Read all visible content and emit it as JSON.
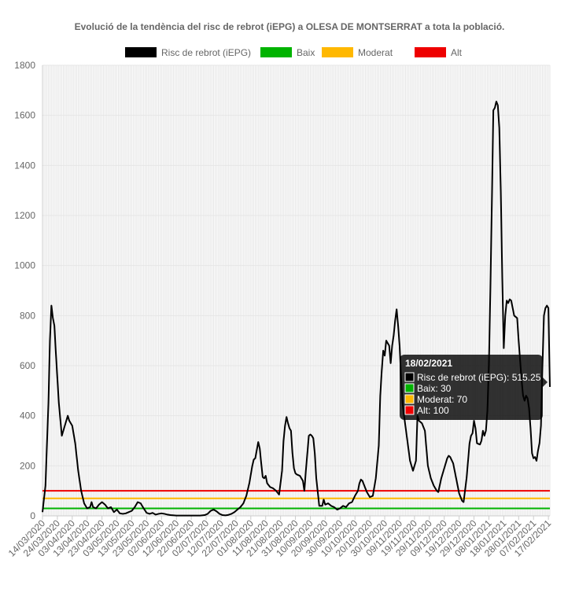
{
  "chart_data": {
    "type": "line",
    "title": "Evolució de la tendència del risc de rebrot (iEPG) a OLESA DE MONTSERRAT a tota la població.",
    "xlabel": "",
    "ylabel": "",
    "ylim": [
      0,
      1800
    ],
    "yticks": [
      0,
      200,
      400,
      600,
      800,
      1000,
      1200,
      1400,
      1600,
      1800
    ],
    "grid": true,
    "legend_position": "top",
    "x_tick_labels": [
      "14/03/2020",
      "24/03/2020",
      "03/04/2020",
      "13/04/2020",
      "23/04/2020",
      "03/05/2020",
      "13/05/2020",
      "23/05/2020",
      "02/06/2020",
      "12/06/2020",
      "22/06/2020",
      "02/07/2020",
      "12/07/2020",
      "22/07/2020",
      "01/08/2020",
      "11/08/2020",
      "21/08/2020",
      "31/08/2020",
      "10/09/2020",
      "20/09/2020",
      "30/09/2020",
      "10/10/2020",
      "20/10/2020",
      "30/10/2020",
      "09/11/2020",
      "19/11/2020",
      "29/11/2020",
      "09/12/2020",
      "19/12/2020",
      "29/12/2020",
      "08/01/2021",
      "18/01/2021",
      "28/01/2021",
      "07/02/2021",
      "17/02/2021"
    ],
    "x_start": "2020-03-14",
    "x_end": "2021-02-18",
    "series": [
      {
        "name": "Risc de rebrot (iEPG)",
        "color": "#000000",
        "points": [
          [
            "2020-03-14",
            15
          ],
          [
            "2020-03-16",
            120
          ],
          [
            "2020-03-18",
            450
          ],
          [
            "2020-03-19",
            700
          ],
          [
            "2020-03-20",
            840
          ],
          [
            "2020-03-21",
            790
          ],
          [
            "2020-03-22",
            760
          ],
          [
            "2020-03-23",
            650
          ],
          [
            "2020-03-25",
            450
          ],
          [
            "2020-03-27",
            320
          ],
          [
            "2020-03-28",
            340
          ],
          [
            "2020-03-29",
            360
          ],
          [
            "2020-03-31",
            400
          ],
          [
            "2020-04-01",
            380
          ],
          [
            "2020-04-03",
            360
          ],
          [
            "2020-04-05",
            290
          ],
          [
            "2020-04-07",
            180
          ],
          [
            "2020-04-09",
            100
          ],
          [
            "2020-04-11",
            50
          ],
          [
            "2020-04-13",
            30
          ],
          [
            "2020-04-15",
            35
          ],
          [
            "2020-04-16",
            55
          ],
          [
            "2020-04-17",
            35
          ],
          [
            "2020-04-19",
            30
          ],
          [
            "2020-04-21",
            45
          ],
          [
            "2020-04-23",
            55
          ],
          [
            "2020-04-25",
            45
          ],
          [
            "2020-04-27",
            30
          ],
          [
            "2020-04-29",
            35
          ],
          [
            "2020-05-01",
            15
          ],
          [
            "2020-05-03",
            25
          ],
          [
            "2020-05-05",
            10
          ],
          [
            "2020-05-07",
            8
          ],
          [
            "2020-05-09",
            10
          ],
          [
            "2020-05-11",
            15
          ],
          [
            "2020-05-13",
            20
          ],
          [
            "2020-05-15",
            35
          ],
          [
            "2020-05-17",
            55
          ],
          [
            "2020-05-19",
            50
          ],
          [
            "2020-05-21",
            30
          ],
          [
            "2020-05-23",
            12
          ],
          [
            "2020-05-25",
            8
          ],
          [
            "2020-05-27",
            12
          ],
          [
            "2020-05-29",
            5
          ],
          [
            "2020-05-31",
            8
          ],
          [
            "2020-06-02",
            10
          ],
          [
            "2020-06-04",
            8
          ],
          [
            "2020-06-06",
            5
          ],
          [
            "2020-06-08",
            3
          ],
          [
            "2020-06-12",
            1
          ],
          [
            "2020-06-20",
            1
          ],
          [
            "2020-06-28",
            1
          ],
          [
            "2020-07-01",
            3
          ],
          [
            "2020-07-03",
            8
          ],
          [
            "2020-07-05",
            20
          ],
          [
            "2020-07-07",
            25
          ],
          [
            "2020-07-09",
            18
          ],
          [
            "2020-07-11",
            8
          ],
          [
            "2020-07-13",
            3
          ],
          [
            "2020-07-15",
            2
          ],
          [
            "2020-07-17",
            4
          ],
          [
            "2020-07-19",
            8
          ],
          [
            "2020-07-21",
            15
          ],
          [
            "2020-07-23",
            25
          ],
          [
            "2020-07-25",
            35
          ],
          [
            "2020-07-27",
            50
          ],
          [
            "2020-07-29",
            80
          ],
          [
            "2020-07-31",
            130
          ],
          [
            "2020-08-02",
            200
          ],
          [
            "2020-08-03",
            225
          ],
          [
            "2020-08-04",
            230
          ],
          [
            "2020-08-06",
            295
          ],
          [
            "2020-08-07",
            270
          ],
          [
            "2020-08-08",
            210
          ],
          [
            "2020-08-09",
            155
          ],
          [
            "2020-08-10",
            150
          ],
          [
            "2020-08-11",
            160
          ],
          [
            "2020-08-12",
            130
          ],
          [
            "2020-08-14",
            115
          ],
          [
            "2020-08-16",
            110
          ],
          [
            "2020-08-18",
            100
          ],
          [
            "2020-08-20",
            85
          ],
          [
            "2020-08-22",
            180
          ],
          [
            "2020-08-23",
            300
          ],
          [
            "2020-08-24",
            360
          ],
          [
            "2020-08-25",
            395
          ],
          [
            "2020-08-26",
            370
          ],
          [
            "2020-08-27",
            350
          ],
          [
            "2020-08-28",
            340
          ],
          [
            "2020-08-29",
            250
          ],
          [
            "2020-08-30",
            190
          ],
          [
            "2020-08-31",
            170
          ],
          [
            "2020-09-01",
            165
          ],
          [
            "2020-09-03",
            160
          ],
          [
            "2020-09-05",
            140
          ],
          [
            "2020-09-06",
            100
          ],
          [
            "2020-09-07",
            180
          ],
          [
            "2020-09-08",
            250
          ],
          [
            "2020-09-09",
            320
          ],
          [
            "2020-09-10",
            325
          ],
          [
            "2020-09-11",
            320
          ],
          [
            "2020-09-12",
            310
          ],
          [
            "2020-09-13",
            250
          ],
          [
            "2020-09-14",
            150
          ],
          [
            "2020-09-16",
            40
          ],
          [
            "2020-09-18",
            40
          ],
          [
            "2020-09-19",
            65
          ],
          [
            "2020-09-20",
            45
          ],
          [
            "2020-09-22",
            50
          ],
          [
            "2020-09-24",
            40
          ],
          [
            "2020-09-26",
            35
          ],
          [
            "2020-09-28",
            25
          ],
          [
            "2020-09-30",
            30
          ],
          [
            "2020-10-02",
            40
          ],
          [
            "2020-10-04",
            35
          ],
          [
            "2020-10-06",
            50
          ],
          [
            "2020-10-08",
            55
          ],
          [
            "2020-10-10",
            80
          ],
          [
            "2020-10-12",
            100
          ],
          [
            "2020-10-13",
            130
          ],
          [
            "2020-10-14",
            145
          ],
          [
            "2020-10-15",
            140
          ],
          [
            "2020-10-17",
            110
          ],
          [
            "2020-10-18",
            95
          ],
          [
            "2020-10-20",
            75
          ],
          [
            "2020-10-22",
            80
          ],
          [
            "2020-10-24",
            150
          ],
          [
            "2020-10-26",
            280
          ],
          [
            "2020-10-27",
            480
          ],
          [
            "2020-10-28",
            580
          ],
          [
            "2020-10-29",
            660
          ],
          [
            "2020-10-30",
            640
          ],
          [
            "2020-10-31",
            700
          ],
          [
            "2020-11-01",
            690
          ],
          [
            "2020-11-02",
            680
          ],
          [
            "2020-11-03",
            610
          ],
          [
            "2020-11-04",
            680
          ],
          [
            "2020-11-05",
            720
          ],
          [
            "2020-11-06",
            780
          ],
          [
            "2020-11-07",
            825
          ],
          [
            "2020-11-08",
            760
          ],
          [
            "2020-11-09",
            680
          ],
          [
            "2020-11-10",
            550
          ],
          [
            "2020-11-11",
            450
          ],
          [
            "2020-11-12",
            400
          ],
          [
            "2020-11-14",
            310
          ],
          [
            "2020-11-16",
            220
          ],
          [
            "2020-11-18",
            180
          ],
          [
            "2020-11-20",
            220
          ],
          [
            "2020-11-21",
            400
          ],
          [
            "2020-11-22",
            380
          ],
          [
            "2020-11-24",
            370
          ],
          [
            "2020-11-26",
            340
          ],
          [
            "2020-11-28",
            200
          ],
          [
            "2020-11-30",
            150
          ],
          [
            "2020-12-02",
            120
          ],
          [
            "2020-12-04",
            100
          ],
          [
            "2020-12-05",
            95
          ],
          [
            "2020-12-07",
            150
          ],
          [
            "2020-12-09",
            190
          ],
          [
            "2020-12-11",
            230
          ],
          [
            "2020-12-12",
            240
          ],
          [
            "2020-12-13",
            235
          ],
          [
            "2020-12-15",
            210
          ],
          [
            "2020-12-17",
            150
          ],
          [
            "2020-12-19",
            90
          ],
          [
            "2020-12-21",
            60
          ],
          [
            "2020-12-22",
            55
          ],
          [
            "2020-12-24",
            150
          ],
          [
            "2020-12-26",
            290
          ],
          [
            "2020-12-27",
            320
          ],
          [
            "2020-12-28",
            330
          ],
          [
            "2020-12-29",
            380
          ],
          [
            "2020-12-30",
            350
          ],
          [
            "2020-12-31",
            290
          ],
          [
            "2021-01-02",
            285
          ],
          [
            "2021-01-03",
            300
          ],
          [
            "2021-01-04",
            340
          ],
          [
            "2021-01-05",
            320
          ],
          [
            "2021-01-06",
            340
          ],
          [
            "2021-01-07",
            420
          ],
          [
            "2021-01-08",
            600
          ],
          [
            "2021-01-09",
            900
          ],
          [
            "2021-01-10",
            1250
          ],
          [
            "2021-01-11",
            1620
          ],
          [
            "2021-01-12",
            1630
          ],
          [
            "2021-01-13",
            1655
          ],
          [
            "2021-01-14",
            1640
          ],
          [
            "2021-01-15",
            1550
          ],
          [
            "2021-01-16",
            1300
          ],
          [
            "2021-01-17",
            950
          ],
          [
            "2021-01-18",
            670
          ],
          [
            "2021-01-19",
            800
          ],
          [
            "2021-01-20",
            860
          ],
          [
            "2021-01-21",
            850
          ],
          [
            "2021-01-22",
            865
          ],
          [
            "2021-01-23",
            860
          ],
          [
            "2021-01-24",
            830
          ],
          [
            "2021-01-25",
            800
          ],
          [
            "2021-01-26",
            795
          ],
          [
            "2021-01-27",
            790
          ],
          [
            "2021-01-28",
            700
          ],
          [
            "2021-01-29",
            620
          ],
          [
            "2021-01-30",
            540
          ],
          [
            "2021-01-31",
            480
          ],
          [
            "2021-02-01",
            460
          ],
          [
            "2021-02-02",
            480
          ],
          [
            "2021-02-03",
            470
          ],
          [
            "2021-02-04",
            430
          ],
          [
            "2021-02-05",
            350
          ],
          [
            "2021-02-06",
            250
          ],
          [
            "2021-02-07",
            230
          ],
          [
            "2021-02-08",
            235
          ],
          [
            "2021-02-09",
            220
          ],
          [
            "2021-02-10",
            260
          ],
          [
            "2021-02-11",
            290
          ],
          [
            "2021-02-12",
            360
          ],
          [
            "2021-02-13",
            600
          ],
          [
            "2021-02-14",
            800
          ],
          [
            "2021-02-15",
            830
          ],
          [
            "2021-02-16",
            840
          ],
          [
            "2021-02-17",
            830
          ],
          [
            "2021-02-18",
            515.25
          ]
        ]
      },
      {
        "name": "Baix",
        "color": "#00b300",
        "constant": 30
      },
      {
        "name": "Moderat",
        "color": "#ffb800",
        "constant": 70
      },
      {
        "name": "Alt",
        "color": "#ee0000",
        "constant": 100
      }
    ]
  },
  "tooltip": {
    "date": "18/02/2021",
    "rows": [
      {
        "text": "Risc de rebrot (iEPG): 515.25",
        "color": "#000000"
      },
      {
        "text": "Baix: 30",
        "color": "#00b300"
      },
      {
        "text": "Moderat: 70",
        "color": "#ffb800"
      },
      {
        "text": "Alt: 100",
        "color": "#ee0000"
      }
    ]
  }
}
